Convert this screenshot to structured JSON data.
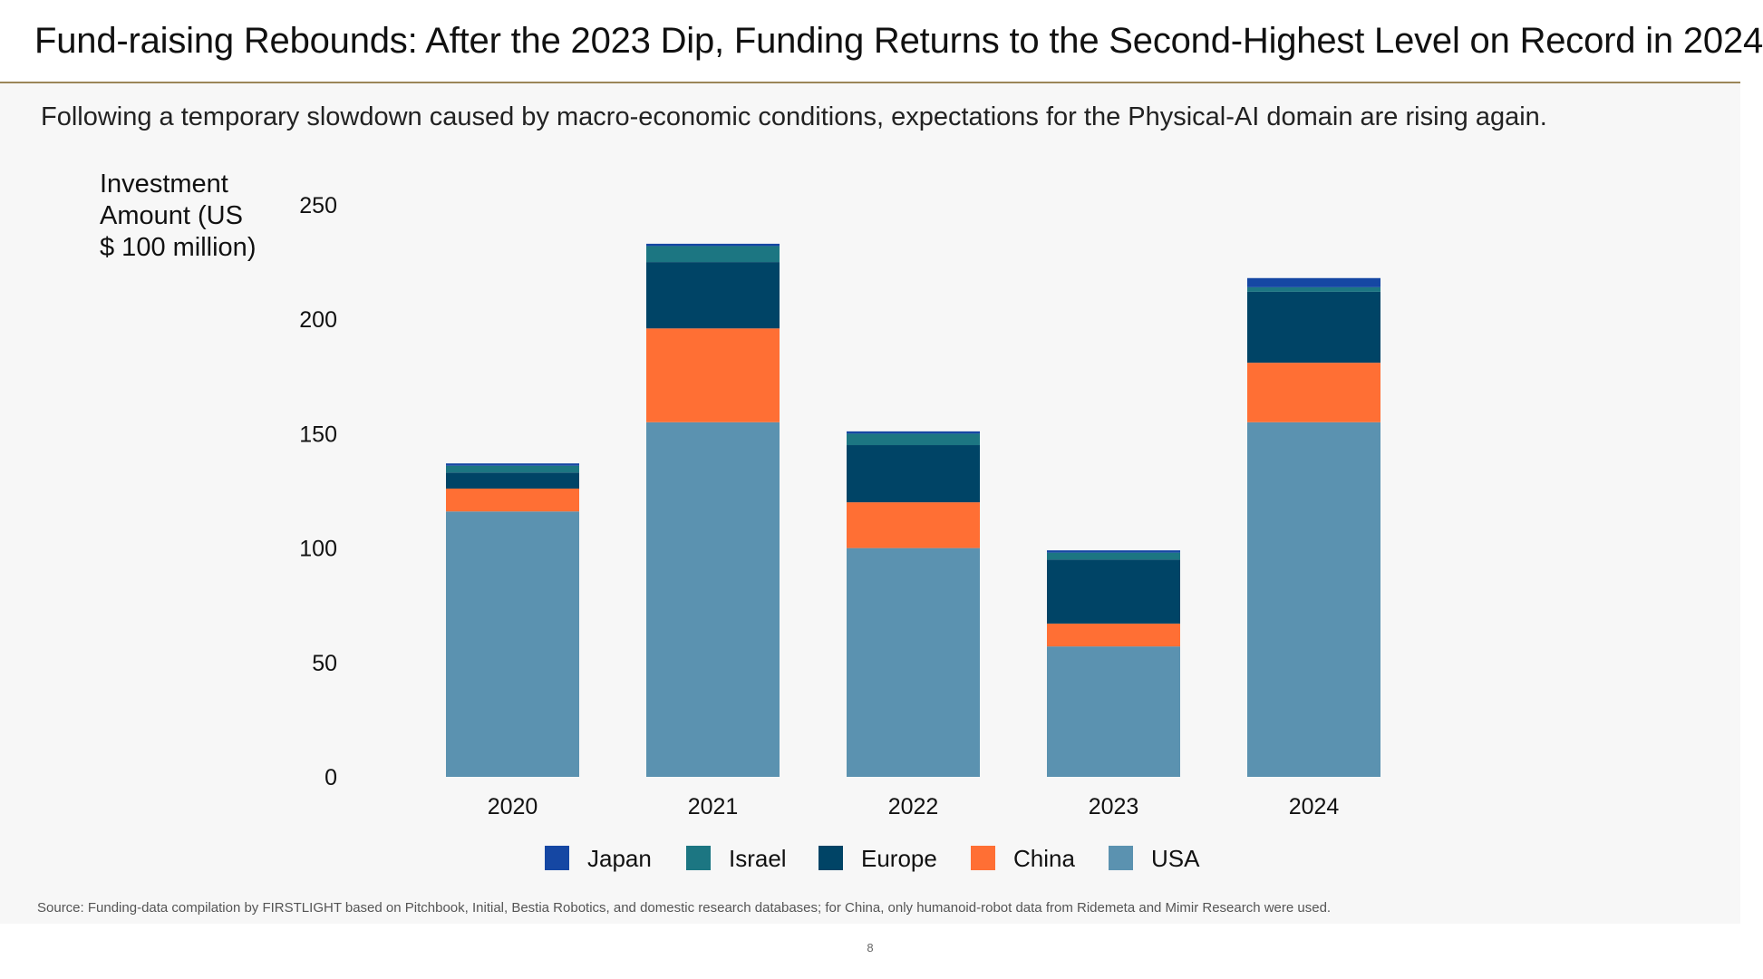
{
  "header": {
    "title": "Fund-raising Rebounds: After the 2023 Dip, Funding Returns to the Second-Highest Level on Record in 2024"
  },
  "slide": {
    "subtitle": "Following a temporary slowdown caused by macro-economic conditions, expectations for the Physical-AI domain are rising again.",
    "source": "Source: Funding-data compilation by FIRSTLIGHT based on Pitchbook, Initial, Bestia Robotics, and domestic research databases; for China, only humanoid-robot data from Ridemeta and Mimir Research were used.",
    "page_number": "8"
  },
  "chart_data": {
    "type": "bar",
    "stacked": true,
    "title": "",
    "xlabel": "",
    "ylabel": "Investment Amount (US $ 100 million)",
    "categories": [
      "2020",
      "2021",
      "2022",
      "2023",
      "2024"
    ],
    "ylim": [
      0,
      250
    ],
    "yticks": [
      "0",
      "50",
      "100",
      "150",
      "200",
      "250"
    ],
    "grid": false,
    "legend_position": "bottom",
    "legend_order": [
      "Japan",
      "Israel",
      "Europe",
      "China",
      "USA"
    ],
    "series": [
      {
        "name": "USA",
        "color": "#5b92b0",
        "values": [
          116,
          155,
          100,
          57,
          155
        ]
      },
      {
        "name": "China",
        "color": "#ff6f34",
        "values": [
          10,
          41,
          20,
          10,
          26
        ]
      },
      {
        "name": "Europe",
        "color": "#004466",
        "values": [
          7,
          29,
          25,
          28,
          31
        ]
      },
      {
        "name": "Israel",
        "color": "#1c7682",
        "values": [
          3,
          7,
          5,
          3,
          2
        ]
      },
      {
        "name": "Japan",
        "color": "#1547a3",
        "values": [
          1,
          1,
          1,
          1,
          4
        ]
      }
    ]
  }
}
